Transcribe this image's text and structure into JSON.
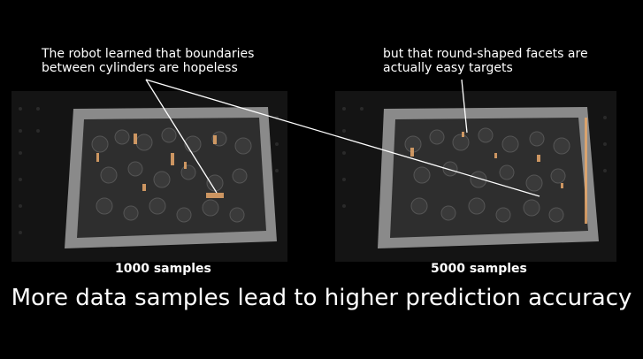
{
  "annotations": {
    "left": "The robot learned that boundaries\nbetween cylinders are hopeless",
    "right": "but that round-shaped facets are\nactually easy targets"
  },
  "panels": {
    "left_label": "1000 samples",
    "right_label": "5000 samples"
  },
  "caption": "More data samples lead to higher prediction accuracy",
  "colors": {
    "background": "#000000",
    "highlight": "#e8a86a",
    "bin": "#8a8a8a",
    "cylinder": "#3a3a3a"
  }
}
